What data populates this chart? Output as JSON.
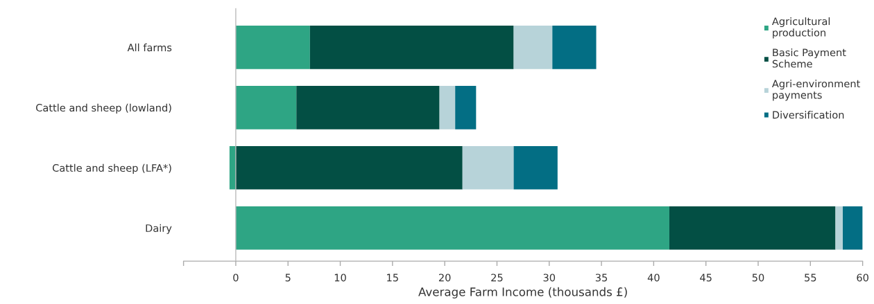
{
  "chart_data": {
    "type": "bar",
    "orientation": "horizontal",
    "stacked": true,
    "categories": [
      "All farms",
      "Cattle and sheep (lowland)",
      "Cattle and sheep (LFA*)",
      "Dairy"
    ],
    "series": [
      {
        "name": "Agricultural\nproduction",
        "color": "#2ea584",
        "values": [
          7.1,
          5.8,
          -0.6,
          41.5
        ]
      },
      {
        "name": "Basic Payment\nScheme",
        "color": "#034f44",
        "values": [
          19.5,
          13.7,
          21.7,
          15.9
        ]
      },
      {
        "name": "Agri-environment\npayments",
        "color": "#b7d3d9",
        "values": [
          3.7,
          1.5,
          4.9,
          0.7
        ]
      },
      {
        "name": "Diversification",
        "color": "#036e84",
        "values": [
          4.2,
          2.0,
          4.2,
          1.9
        ]
      }
    ],
    "xlabel": "Average Farm Income (thousands £)",
    "xlim": [
      -5,
      60
    ],
    "xticks": [
      {
        "value": -5,
        "label": null
      },
      0,
      5,
      10,
      15,
      20,
      25,
      30,
      35,
      40,
      45,
      50,
      55,
      60
    ],
    "ref_lines": [
      {
        "axis": "x",
        "value": 0,
        "color": "#bbbbbb"
      }
    ],
    "legend": "top right"
  }
}
